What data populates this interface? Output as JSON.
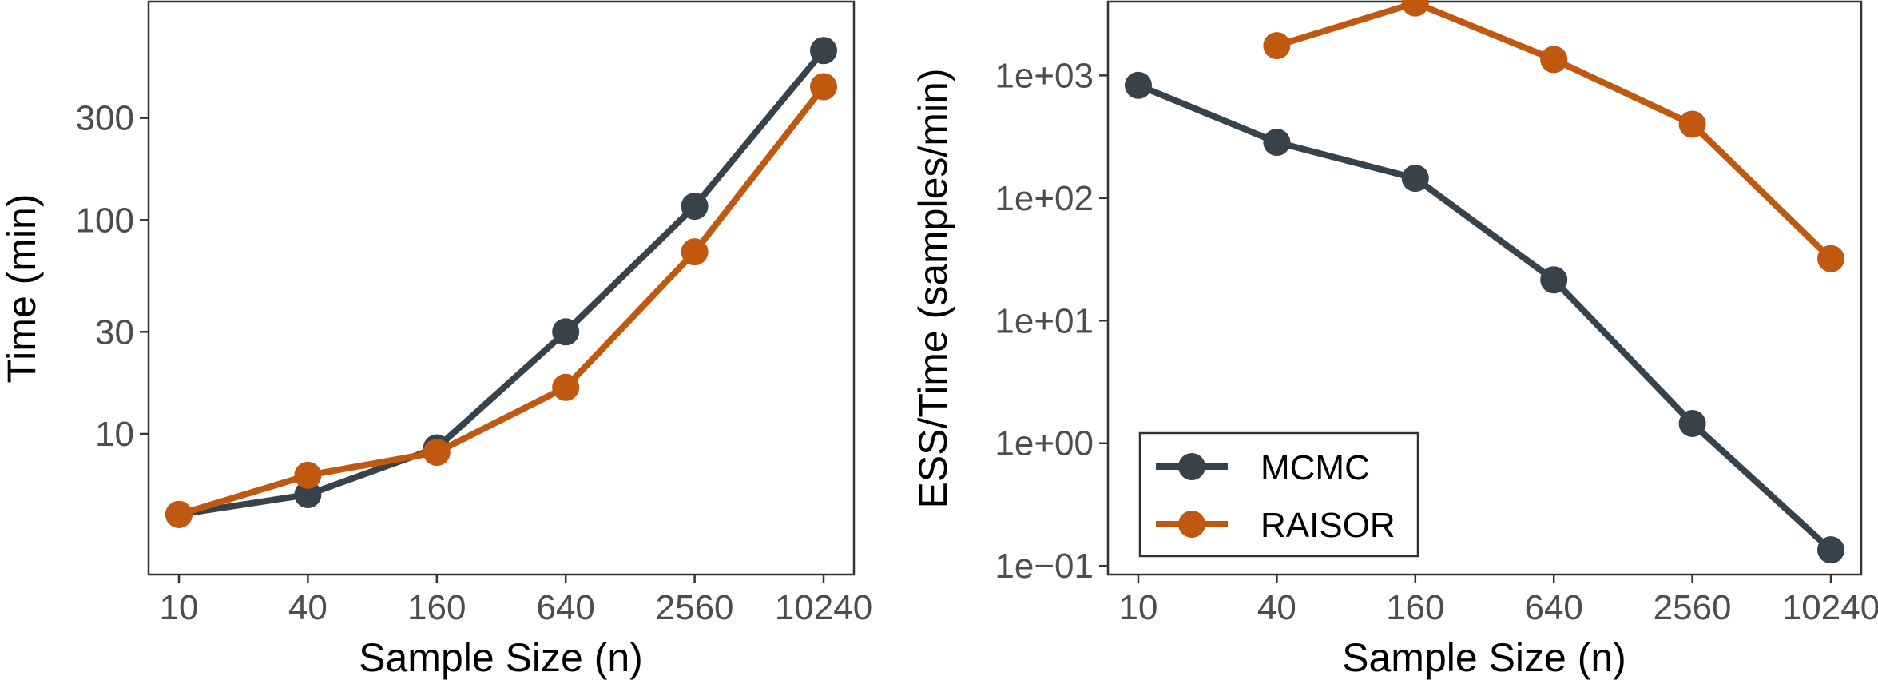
{
  "chart_data": [
    {
      "type": "line",
      "x_scale": "log2",
      "y_scale": "log10",
      "xlabel": "Sample Size (n)",
      "ylabel": "Time (min)",
      "x_ticks": [
        10,
        40,
        160,
        640,
        2560,
        10240
      ],
      "x_tick_labels": [
        "10",
        "40",
        "160",
        "640",
        "2560",
        "10240"
      ],
      "y_ticks": [
        10,
        30,
        100,
        300
      ],
      "y_tick_labels": [
        "10",
        "30",
        "100",
        "300"
      ],
      "ylim": [
        2.2,
        1050
      ],
      "grid": false,
      "series": [
        {
          "name": "MCMC",
          "color": "#37424a",
          "x": [
            10,
            40,
            160,
            640,
            2560,
            10240
          ],
          "y": [
            4.2,
            5.2,
            8.6,
            30,
            116,
            620
          ]
        },
        {
          "name": "RAISOR",
          "color": "#c0580f",
          "x": [
            10,
            40,
            160,
            640,
            2560,
            10240
          ],
          "y": [
            4.2,
            6.4,
            8.2,
            16.5,
            71,
            420
          ]
        }
      ]
    },
    {
      "type": "line",
      "x_scale": "log2",
      "y_scale": "log10",
      "xlabel": "Sample Size (n)",
      "ylabel": "ESS/Time (samples/min)",
      "x_ticks": [
        10,
        40,
        160,
        640,
        2560,
        10240
      ],
      "x_tick_labels": [
        "10",
        "40",
        "160",
        "640",
        "2560",
        "10240"
      ],
      "y_ticks": [
        0.1,
        1,
        10,
        100,
        1000
      ],
      "y_tick_labels": [
        "1e−01",
        "1e+00",
        "1e+01",
        "1e+02",
        "1e+03"
      ],
      "ylim": [
        0.085,
        4000
      ],
      "grid": false,
      "legend": {
        "position": "bottom-left",
        "entries": [
          "MCMC",
          "RAISOR"
        ]
      },
      "series": [
        {
          "name": "MCMC",
          "color": "#37424a",
          "x": [
            10,
            40,
            160,
            640,
            2560,
            10240
          ],
          "y": [
            830,
            285,
            145,
            21.5,
            1.45,
            0.135
          ]
        },
        {
          "name": "RAISOR",
          "color": "#c0580f",
          "x": [
            40,
            160,
            640,
            2560,
            10240
          ],
          "y": [
            1750,
            3900,
            1350,
            400,
            32
          ]
        }
      ]
    }
  ]
}
